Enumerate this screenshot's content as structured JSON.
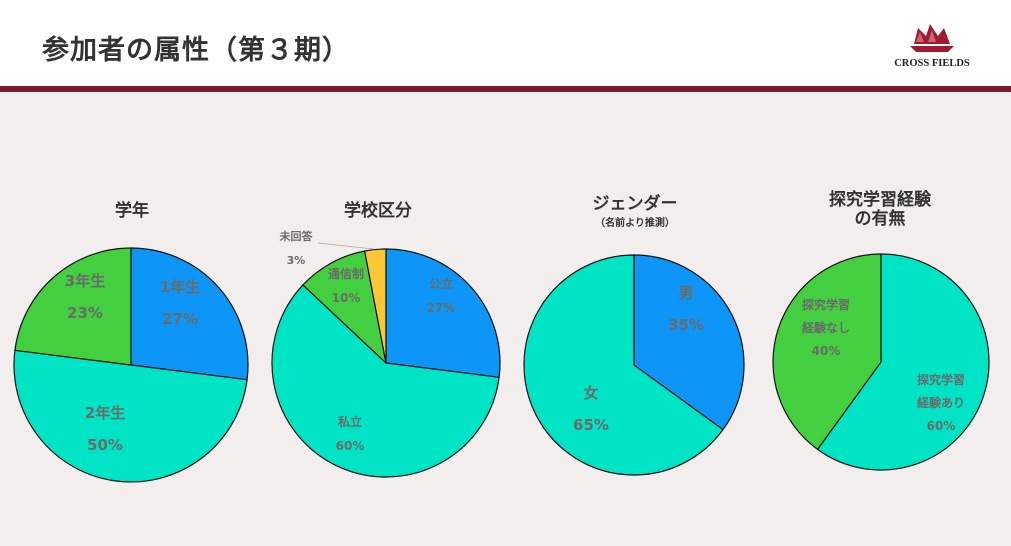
{
  "page": {
    "title": "参加者の属性（第３期）",
    "logo_text": "CROSS FIELDS",
    "header_rule_color": "#7a1b2c"
  },
  "colors": {
    "blue": "#0d96f7",
    "teal": "#00e4c6",
    "green": "#43cf3f",
    "yellow": "#fdc635",
    "outline": "#111111",
    "label": "#6b6b6b"
  },
  "chart_data": [
    {
      "type": "pie",
      "title": "学年",
      "slices": [
        {
          "label": [
            "1年生",
            "27%"
          ],
          "value": 27,
          "color": "#0d96f7"
        },
        {
          "label": [
            "2年生",
            "50%"
          ],
          "value": 50,
          "color": "#00e4c6"
        },
        {
          "label": [
            "3年生",
            "23%"
          ],
          "value": 23,
          "color": "#43cf3f"
        }
      ]
    },
    {
      "type": "pie",
      "title": "学校区分",
      "slices": [
        {
          "label": [
            "公立",
            "27%"
          ],
          "value": 27,
          "color": "#0d96f7"
        },
        {
          "label": [
            "私立",
            "60%"
          ],
          "value": 60,
          "color": "#00e4c6"
        },
        {
          "label": [
            "通信制",
            "10%"
          ],
          "value": 10,
          "color": "#43cf3f"
        },
        {
          "label": [
            "未回答",
            "3%"
          ],
          "value": 3,
          "color": "#fdc635"
        }
      ]
    },
    {
      "type": "pie",
      "title": "ジェンダー",
      "subtitle": "（名前より推測）",
      "slices": [
        {
          "label": [
            "男",
            "35%"
          ],
          "value": 35,
          "color": "#0d96f7"
        },
        {
          "label": [
            "女",
            "65%"
          ],
          "value": 65,
          "color": "#00e4c6"
        }
      ]
    },
    {
      "type": "pie",
      "title": [
        "探究学習経験",
        "の有無"
      ],
      "slices": [
        {
          "label": [
            "探究学習",
            "経験あり",
            "60%"
          ],
          "value": 60,
          "color": "#00e4c6"
        },
        {
          "label": [
            "探究学習",
            "経験なし",
            "40%"
          ],
          "value": 40,
          "color": "#43cf3f"
        }
      ]
    }
  ]
}
